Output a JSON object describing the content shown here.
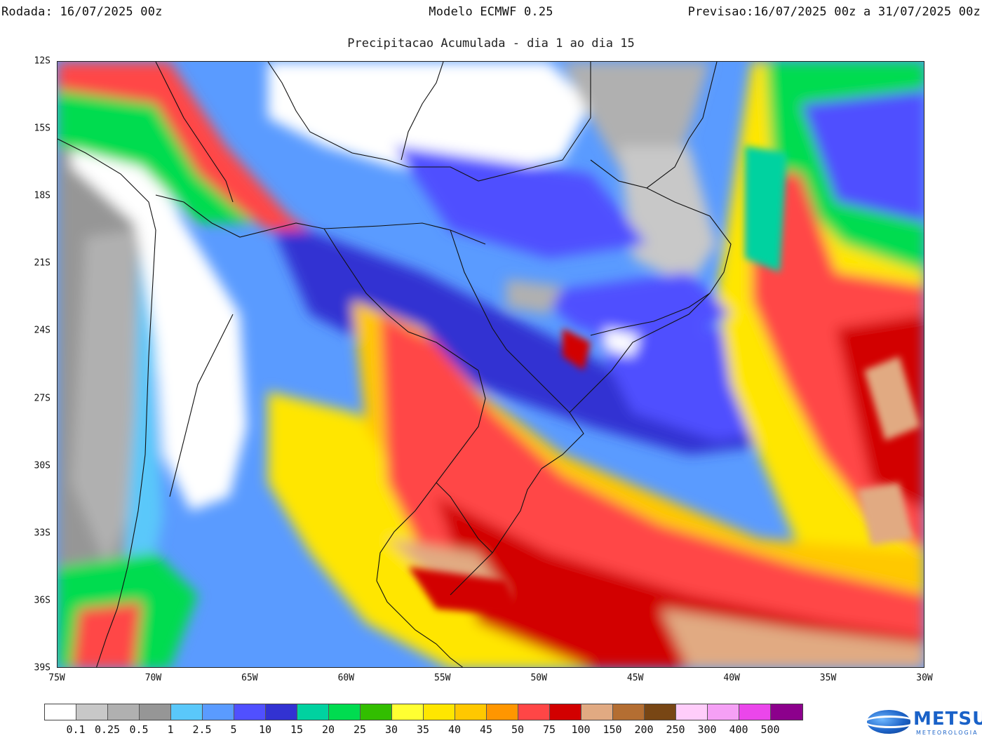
{
  "header": {
    "run_label": "Rodada:",
    "run_value": "16/07/2025 00z",
    "model": "Modelo ECMWF 0.25",
    "forecast_label": "Previsao:",
    "forecast_value": "16/07/2025 00z a 31/07/2025 00z",
    "subtitle": "Precipitacao Acumulada - dia 1 ao dia 15"
  },
  "map": {
    "lat_labels": [
      "12S",
      "15S",
      "18S",
      "21S",
      "24S",
      "27S",
      "30S",
      "33S",
      "36S",
      "39S"
    ],
    "lon_labels": [
      "75W",
      "70W",
      "65W",
      "60W",
      "55W",
      "50W",
      "45W",
      "40W",
      "35W",
      "30W"
    ],
    "lat_range": [
      -12,
      -39
    ],
    "lon_range": [
      -75,
      -30
    ]
  },
  "legend": {
    "colors": [
      "#ffffff",
      "#c8c8c8",
      "#b0b0b0",
      "#969696",
      "#5ac8fa",
      "#5a9bff",
      "#5050ff",
      "#3232d2",
      "#00d2a0",
      "#00dc50",
      "#32be00",
      "#ffff32",
      "#ffe600",
      "#ffc800",
      "#ff9600",
      "#ff4646",
      "#d20000",
      "#e1aa82",
      "#b46e32",
      "#784614",
      "#ffcdfa",
      "#f5a0f5",
      "#eb46eb",
      "#8c008c"
    ],
    "labels": [
      "0.1",
      "0.25",
      "0.5",
      "1",
      "2.5",
      "5",
      "10",
      "15",
      "20",
      "25",
      "30",
      "35",
      "40",
      "45",
      "50",
      "75",
      "100",
      "150",
      "200",
      "250",
      "300",
      "400",
      "500"
    ]
  },
  "logo": {
    "name": "METSUL",
    "tagline": "METEOROLOGIA"
  }
}
